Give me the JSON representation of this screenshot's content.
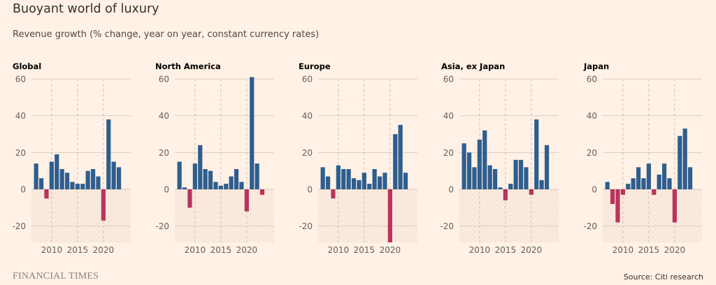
{
  "header": {
    "title": "Buoyant world of luxury",
    "subtitle": "Revenue growth (% change, year on year, constant currency rates)"
  },
  "footer": {
    "brand": "FINANCIAL TIMES",
    "source": "Source: Citi research"
  },
  "colors": {
    "background": "#FFF1E5",
    "positive": "#2E5E8E",
    "negative": "#B8345C",
    "gridline": "#d9ccc1",
    "hatch": "#e6d9ce"
  },
  "chart_data": [
    {
      "type": "bar",
      "title": "Global",
      "x": [
        2007,
        2008,
        2009,
        2010,
        2011,
        2012,
        2013,
        2014,
        2015,
        2016,
        2017,
        2018,
        2019,
        2020,
        2021,
        2022,
        2023
      ],
      "values": [
        14,
        6,
        -5,
        15,
        19,
        11,
        9,
        4,
        3,
        3,
        10,
        11,
        7,
        -17,
        38,
        15,
        12
      ],
      "xticks": [
        "2010",
        "2015",
        "2020"
      ],
      "yticks": [
        "60",
        "40",
        "20",
        "0",
        "-20"
      ],
      "ylim": [
        -29,
        60
      ],
      "xlabel": "",
      "ylabel": ""
    },
    {
      "type": "bar",
      "title": "North America",
      "x": [
        2007,
        2008,
        2009,
        2010,
        2011,
        2012,
        2013,
        2014,
        2015,
        2016,
        2017,
        2018,
        2019,
        2020,
        2021,
        2022,
        2023
      ],
      "values": [
        15,
        1,
        -10,
        14,
        24,
        11,
        10,
        4,
        2,
        3,
        7,
        11,
        4,
        -12,
        61,
        14,
        -3
      ],
      "xticks": [
        "2010",
        "2015",
        "2020"
      ],
      "yticks": [
        "60",
        "40",
        "20",
        "0",
        "-20"
      ],
      "ylim": [
        -29,
        60
      ],
      "xlabel": "",
      "ylabel": ""
    },
    {
      "type": "bar",
      "title": "Europe",
      "x": [
        2007,
        2008,
        2009,
        2010,
        2011,
        2012,
        2013,
        2014,
        2015,
        2016,
        2017,
        2018,
        2019,
        2020,
        2021,
        2022,
        2023
      ],
      "values": [
        12,
        7,
        -5,
        13,
        11,
        11,
        6,
        5,
        9,
        3,
        11,
        7,
        9,
        -29,
        30,
        35,
        9
      ],
      "xticks": [
        "2010",
        "2015",
        "2020"
      ],
      "yticks": [
        "60",
        "40",
        "20",
        "0",
        "-20"
      ],
      "ylim": [
        -29,
        60
      ],
      "xlabel": "",
      "ylabel": ""
    },
    {
      "type": "bar",
      "title": "Asia, ex Japan",
      "x": [
        2007,
        2008,
        2009,
        2010,
        2011,
        2012,
        2013,
        2014,
        2015,
        2016,
        2017,
        2018,
        2019,
        2020,
        2021,
        2022,
        2023
      ],
      "values": [
        25,
        20,
        12,
        27,
        32,
        13,
        11,
        1,
        -6,
        3,
        16,
        16,
        12,
        -3,
        38,
        5,
        24
      ],
      "xticks": [
        "2010",
        "2015",
        "2020"
      ],
      "yticks": [
        "60",
        "40",
        "20",
        "0",
        "-20"
      ],
      "ylim": [
        -29,
        60
      ],
      "xlabel": "",
      "ylabel": ""
    },
    {
      "type": "bar",
      "title": "Japan",
      "x": [
        2007,
        2008,
        2009,
        2010,
        2011,
        2012,
        2013,
        2014,
        2015,
        2016,
        2017,
        2018,
        2019,
        2020,
        2021,
        2022,
        2023
      ],
      "values": [
        4,
        -8,
        -18,
        -3,
        3,
        6,
        12,
        6,
        14,
        -3,
        8,
        14,
        6,
        -18,
        29,
        33,
        12
      ],
      "xticks": [
        "2010",
        "2015",
        "2020"
      ],
      "yticks": [
        "60",
        "40",
        "20",
        "0",
        "-20"
      ],
      "ylim": [
        -29,
        60
      ],
      "xlabel": "",
      "ylabel": ""
    }
  ]
}
